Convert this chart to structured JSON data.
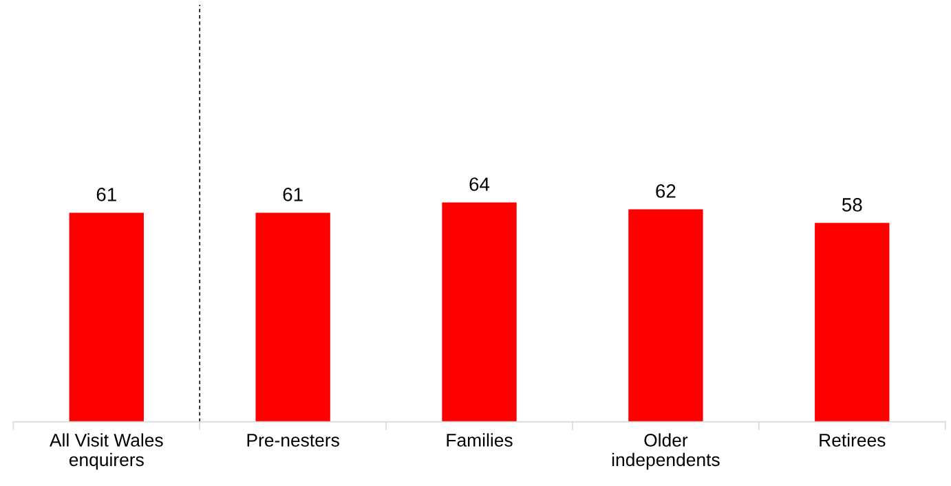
{
  "chart_data": {
    "type": "bar",
    "categories": [
      "All Visit Wales\nenquirers",
      "Pre-nesters",
      "Families",
      "Older\nindependents",
      "Retirees"
    ],
    "values": [
      61,
      61,
      64,
      62,
      58
    ],
    "color": "#ff0000",
    "data_labels": true,
    "grid": false
  }
}
